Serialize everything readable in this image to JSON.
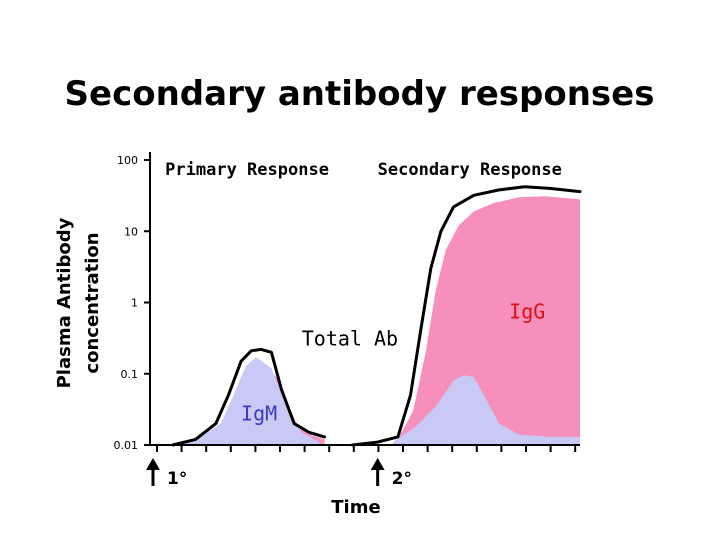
{
  "title": "Secondary antibody responses",
  "colors": {
    "igm_fill": "#c9c9f5",
    "igg_fill": "#f78fbd",
    "total_line": "#000000",
    "igm_label": "#3b3bbf",
    "igg_label": "#e01010"
  },
  "chart_data": {
    "type": "area",
    "title": "Secondary antibody responses",
    "xlabel": "Time",
    "ylabel_lines": [
      "Plasma Antibody",
      "concentration"
    ],
    "yscale": "log",
    "ylim": [
      0.01,
      100
    ],
    "yticks": [
      {
        "value": 0.01,
        "label": "0.01"
      },
      {
        "value": 0.1,
        "label": "0.1"
      },
      {
        "value": 1,
        "label": "1"
      },
      {
        "value": 10,
        "label": "10"
      },
      {
        "value": 100,
        "label": "100"
      }
    ],
    "xlim": [
      0,
      17
    ],
    "x_tick_count": 18,
    "regions": [
      {
        "label": "Primary Response",
        "x": 0.6
      },
      {
        "label": "Secondary Response",
        "x": 9.0
      }
    ],
    "markers": [
      {
        "label": "1°",
        "x": 0
      },
      {
        "label": "2°",
        "x": 9.0
      }
    ],
    "annotations": [
      {
        "text": "IgM",
        "x": 3.6,
        "y": 0.022,
        "color_key": "igm_label"
      },
      {
        "text": "IgG",
        "x": 14.2,
        "y": 0.6,
        "color_key": "igg_label"
      },
      {
        "text": "Total Ab",
        "x": 6.0,
        "y": 0.25,
        "color_key": "total_line"
      }
    ],
    "series": [
      {
        "name": "IgM",
        "segments": [
          {
            "x": [
              0.9,
              1.8,
              2.8,
              3.3,
              3.8,
              4.2,
              4.8,
              5.4,
              6.0,
              6.7
            ],
            "y": [
              0.01,
              0.012,
              0.02,
              0.05,
              0.13,
              0.17,
              0.12,
              0.035,
              0.015,
              0.011
            ]
          },
          {
            "x": [
              9.6,
              10.5,
              11.3,
              12.0,
              12.4,
              12.8,
              13.2,
              13.8,
              14.6,
              15.8,
              17.0
            ],
            "y": [
              0.011,
              0.018,
              0.035,
              0.08,
              0.095,
              0.09,
              0.05,
              0.02,
              0.014,
              0.013,
              0.013
            ]
          }
        ]
      },
      {
        "name": "IgG",
        "segments": [
          {
            "x": [
              4.6,
              5.0,
              5.4,
              5.8,
              6.3,
              6.9
            ],
            "y": [
              0.12,
              0.09,
              0.04,
              0.02,
              0.014,
              0.012
            ]
          },
          {
            "x": [
              9.8,
              10.4,
              10.9,
              11.3,
              11.7,
              12.2,
              12.8,
              13.6,
              14.6,
              15.6,
              17.0
            ],
            "y": [
              0.012,
              0.03,
              0.2,
              1.5,
              5.5,
              12.0,
              19.0,
              25.0,
              30.0,
              31.0,
              28.0
            ]
          }
        ]
      },
      {
        "name": "Total Ab",
        "segments": [
          {
            "x": [
              0.9,
              1.8,
              2.6,
              3.1,
              3.6,
              4.0,
              4.4,
              4.8,
              5.2,
              5.7,
              6.3,
              6.9
            ],
            "y": [
              0.01,
              0.012,
              0.02,
              0.05,
              0.15,
              0.21,
              0.22,
              0.2,
              0.06,
              0.02,
              0.015,
              0.013
            ]
          },
          {
            "x": [
              8.0,
              9.0,
              9.8,
              10.3,
              10.7,
              11.1,
              11.5,
              12.0,
              12.8,
              13.8,
              14.8,
              15.8,
              17.0
            ],
            "y": [
              0.01,
              0.011,
              0.013,
              0.05,
              0.4,
              3.0,
              10.0,
              22.0,
              32.0,
              38.0,
              42.0,
              40.0,
              36.0
            ]
          }
        ]
      }
    ]
  }
}
